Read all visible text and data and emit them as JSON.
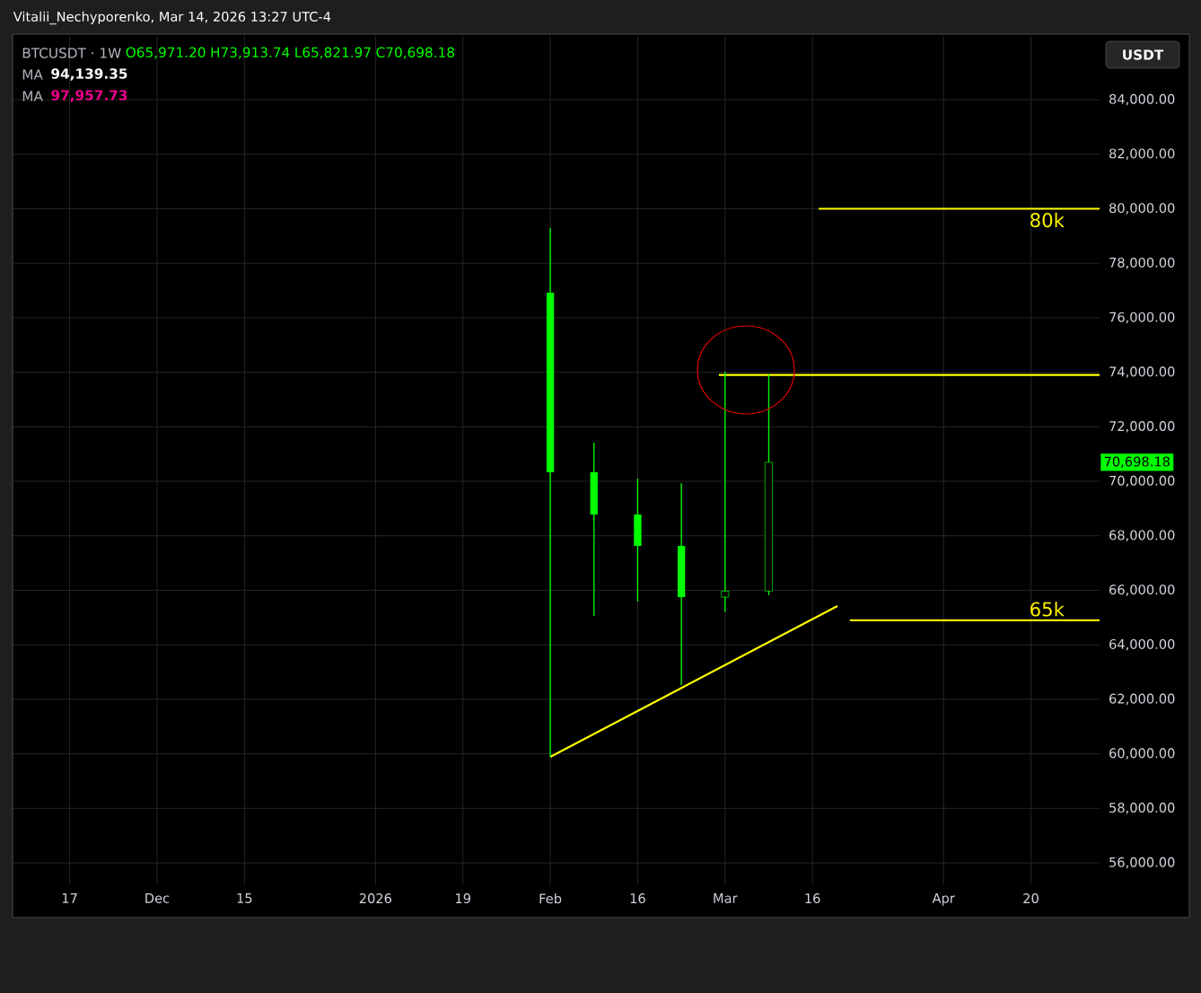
{
  "chart_data": {
    "type": "candlestick",
    "title": "Vitalii_Nechyporenko, Mar 14, 2026 13:27 UTC-4",
    "x": [
      "2026-02-02",
      "2026-02-09",
      "2026-02-16",
      "2026-02-23",
      "2026-03-02",
      "2026-03-09"
    ],
    "ohlc": [
      [
        76920,
        79290,
        59890,
        70330
      ],
      [
        70330,
        71420,
        65060,
        68780
      ],
      [
        68780,
        70100,
        65590,
        67630
      ],
      [
        67630,
        69930,
        62520,
        65750
      ],
      [
        65750,
        74020,
        65220,
        65970
      ],
      [
        65971.2,
        73913.74,
        65821.97,
        70698.18
      ]
    ],
    "color": "#00ff00",
    "series": [
      {
        "type": "line",
        "color": "#ffff00",
        "x": [
          "2026-03-17",
          "2026-05-01"
        ],
        "values": [
          80000,
          80000
        ]
      },
      {
        "type": "line",
        "color": "#ffff00",
        "x": [
          "2026-03-22",
          "2026-05-01"
        ],
        "values": [
          64900,
          64900
        ]
      },
      {
        "type": "line",
        "color": "#ffff00",
        "x": [
          "2026-02-02",
          "2026-03-20"
        ],
        "values": [
          59890,
          65420
        ]
      },
      {
        "type": "line",
        "color": "#ffff00",
        "x": [
          "2026-03-01",
          "2026-05-01"
        ],
        "values": [
          73900,
          73900
        ]
      }
    ],
    "annotations": [
      "BTCUSDT · 1W",
      "O65,971.20",
      "H73,913.74",
      "L65,821.97",
      "C70,698.18",
      "MA",
      "94,139.35",
      "MA",
      "97,957.73",
      "USDT",
      {
        "text": "80k",
        "x": "2026-04-26",
        "y": 80000
      },
      {
        "text": "65k",
        "x": "2026-04-26",
        "y": 64900
      },
      "70,698.18"
    ],
    "xlim": [
      "2025-11-08",
      "2026-05-01"
    ],
    "ylim": [
      55210,
      86340
    ],
    "xticks": [
      {
        "value": "2025-11-17",
        "label": "17"
      },
      {
        "value": "2025-12-01",
        "label": "Dec"
      },
      {
        "value": "2025-12-15",
        "label": "15"
      },
      {
        "value": "2026-01-05",
        "label": "2026"
      },
      {
        "value": "2026-01-19",
        "label": "19"
      },
      {
        "value": "2026-02-02",
        "label": "Feb"
      },
      {
        "value": "2026-02-16",
        "label": "16"
      },
      {
        "value": "2026-03-02",
        "label": "Mar"
      },
      {
        "value": "2026-03-16",
        "label": "16"
      },
      {
        "value": "2026-04-06",
        "label": "Apr"
      },
      {
        "value": "2026-04-20",
        "label": "20"
      }
    ],
    "yticks": [
      {
        "value": 56000,
        "label": "56,000.00"
      },
      {
        "value": 58000,
        "label": "58,000.00"
      },
      {
        "value": 60000,
        "label": "60,000.00"
      },
      {
        "value": 62000,
        "label": "62,000.00"
      },
      {
        "value": 64000,
        "label": "64,000.00"
      },
      {
        "value": 66000,
        "label": "66,000.00"
      },
      {
        "value": 68000,
        "label": "68,000.00"
      },
      {
        "value": 70000,
        "label": "70,000.00"
      },
      {
        "value": 72000,
        "label": "72,000.00"
      },
      {
        "value": 74000,
        "label": "74,000.00"
      },
      {
        "value": 76000,
        "label": "76,000.00"
      },
      {
        "value": 78000,
        "label": "78,000.00"
      },
      {
        "value": 80000,
        "label": "80,000.00"
      },
      {
        "value": 82000,
        "label": "82,000.00"
      },
      {
        "value": 84000,
        "label": "84,000.00"
      }
    ],
    "grid": true
  }
}
